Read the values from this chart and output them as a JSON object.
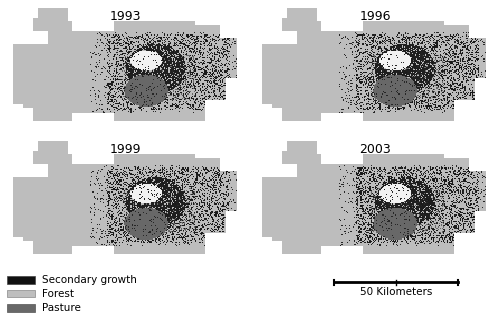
{
  "years": [
    "1993",
    "1996",
    "1999",
    "2003"
  ],
  "legend_items": [
    {
      "label": "Secondary growth",
      "color": "#111111"
    },
    {
      "label": "Forest",
      "color": "#bebebe"
    },
    {
      "label": "Pasture",
      "color": "#686868"
    }
  ],
  "scale_bar_label": "50 Kilometers",
  "bg_color": "#ffffff",
  "forest_color": "#bebebe",
  "secondary_color": "#111111",
  "pasture_color": "#686868",
  "outer_bg": "#ffffff",
  "title_fontsize": 9,
  "legend_fontsize": 7.5,
  "scale_fontsize": 7.5
}
